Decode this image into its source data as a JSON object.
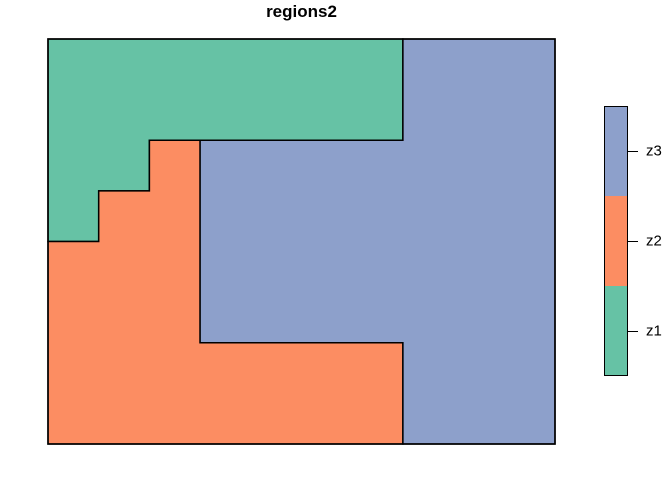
{
  "title": "regions2",
  "colors": {
    "outline": "#000000",
    "background": "#ffffff",
    "z1": "#66C2A5",
    "z2": "#FC8D62",
    "z3": "#8DA0CB"
  },
  "legend": {
    "position": "right",
    "entries": [
      {
        "label": "z3",
        "color": "#8DA0CB"
      },
      {
        "label": "z2",
        "color": "#FC8D62"
      },
      {
        "label": "z1",
        "color": "#66C2A5"
      }
    ]
  },
  "chart_data": {
    "type": "heatmap",
    "title": "regions2",
    "xlabel": "",
    "ylabel": "",
    "axes_ticks": "none",
    "grid": {
      "rows": 8,
      "cols": 10
    },
    "categories": [
      "z1",
      "z2",
      "z3"
    ],
    "legend_entries_top_to_bottom": [
      "z3",
      "z2",
      "z1"
    ],
    "matrix_rows_top_to_bottom": [
      [
        "z1",
        "z1",
        "z1",
        "z1",
        "z1",
        "z1",
        "z1",
        "z3",
        "z3",
        "z3"
      ],
      [
        "z1",
        "z1",
        "z1",
        "z1",
        "z1",
        "z1",
        "z1",
        "z3",
        "z3",
        "z3"
      ],
      [
        "z1",
        "z1",
        "z2",
        "z3",
        "z3",
        "z3",
        "z3",
        "z3",
        "z3",
        "z3"
      ],
      [
        "z1",
        "z2",
        "z2",
        "z3",
        "z3",
        "z3",
        "z3",
        "z3",
        "z3",
        "z3"
      ],
      [
        "z2",
        "z2",
        "z2",
        "z3",
        "z3",
        "z3",
        "z3",
        "z3",
        "z3",
        "z3"
      ],
      [
        "z2",
        "z2",
        "z2",
        "z3",
        "z3",
        "z3",
        "z3",
        "z3",
        "z3",
        "z3"
      ],
      [
        "z2",
        "z2",
        "z2",
        "z2",
        "z2",
        "z2",
        "z2",
        "z3",
        "z3",
        "z3"
      ],
      [
        "z2",
        "z2",
        "z2",
        "z2",
        "z2",
        "z2",
        "z2",
        "z3",
        "z3",
        "z3"
      ]
    ],
    "regions": [
      {
        "label": "z1",
        "color": "#66C2A5",
        "points": [
          [
            0,
            0
          ],
          [
            7,
            0
          ],
          [
            7,
            2
          ],
          [
            2,
            2
          ],
          [
            2,
            3
          ],
          [
            1,
            3
          ],
          [
            1,
            4
          ],
          [
            0,
            4
          ]
        ]
      },
      {
        "label": "z2",
        "color": "#FC8D62",
        "points": [
          [
            2,
            2
          ],
          [
            3,
            2
          ],
          [
            3,
            6
          ],
          [
            7,
            6
          ],
          [
            7,
            8
          ],
          [
            0,
            8
          ],
          [
            0,
            4
          ],
          [
            1,
            4
          ],
          [
            1,
            3
          ],
          [
            2,
            3
          ]
        ]
      },
      {
        "label": "z3",
        "color": "#8DA0CB",
        "points": [
          [
            7,
            0
          ],
          [
            10,
            0
          ],
          [
            10,
            8
          ],
          [
            7,
            8
          ],
          [
            7,
            6
          ],
          [
            3,
            6
          ],
          [
            3,
            2
          ],
          [
            7,
            2
          ]
        ]
      }
    ]
  }
}
